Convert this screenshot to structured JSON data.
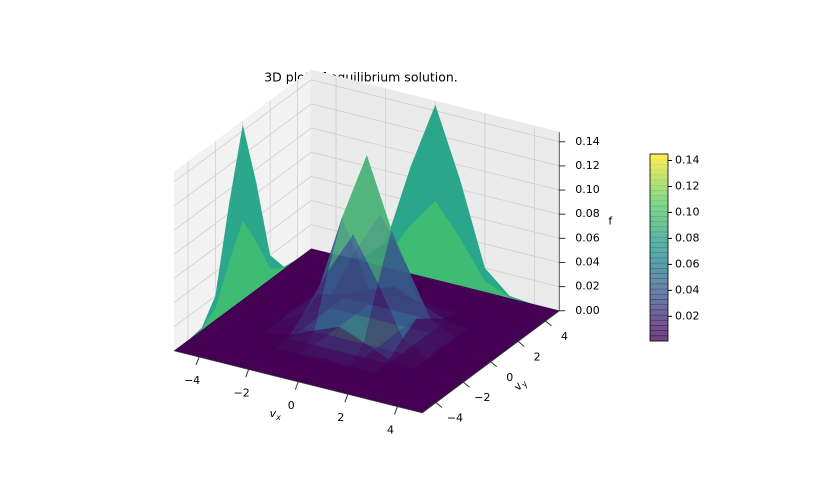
{
  "chart_data": {
    "type": "surface3d",
    "title": "3D plot of equilibrium solution.",
    "x_label": {
      "base": "v",
      "sub": "x"
    },
    "y_label": {
      "base": "v",
      "sub": "y"
    },
    "z_label": "f",
    "colormap": "viridis",
    "xlim": [
      -5,
      5
    ],
    "ylim": [
      -5,
      5
    ],
    "zlim": [
      0,
      0.148
    ],
    "xticks": [
      {
        "value": -4,
        "label": "−4"
      },
      {
        "value": -2,
        "label": "−2"
      },
      0,
      2,
      4
    ],
    "yticks": [
      {
        "value": -4,
        "label": "−4"
      },
      {
        "value": -2,
        "label": "−2"
      },
      0,
      2,
      4
    ],
    "zticks": [
      {
        "value": 0,
        "label": "0.00"
      },
      {
        "value": 0.02,
        "label": "0.02"
      },
      {
        "value": 0.04,
        "label": "0.04"
      },
      {
        "value": 0.06,
        "label": "0.06"
      },
      {
        "value": 0.08,
        "label": "0.08"
      },
      {
        "value": 0.1,
        "label": "0.10"
      },
      {
        "value": 0.12,
        "label": "0.12"
      },
      {
        "value": 0.14,
        "label": "0.14"
      }
    ],
    "clim": [
      0.001,
      0.145
    ],
    "colorbar_ticks": [
      {
        "value": 0.02,
        "label": "0.02"
      },
      {
        "value": 0.04,
        "label": "0.04"
      },
      {
        "value": 0.06,
        "label": "0.06"
      },
      {
        "value": 0.08,
        "label": "0.08"
      },
      {
        "value": 0.1,
        "label": "0.10"
      },
      {
        "value": 0.12,
        "label": "0.12"
      },
      {
        "value": 0.14,
        "label": "0.14"
      }
    ],
    "x": [
      -5,
      -4,
      -3,
      -2,
      -1,
      0,
      1,
      2,
      3,
      4,
      5
    ],
    "y": [
      -5,
      -4,
      -3,
      -2,
      -1,
      0,
      1,
      2,
      3,
      4,
      5
    ],
    "z": [
      [
        0,
        0,
        0,
        0,
        0,
        0,
        0,
        0,
        0,
        0,
        0
      ],
      [
        0,
        0,
        0,
        0,
        0,
        0,
        0,
        0,
        0,
        0,
        0
      ],
      [
        0,
        0,
        0,
        0,
        0.001,
        0.002,
        0.001,
        0,
        0,
        0,
        0
      ],
      [
        0,
        0,
        0,
        0.003,
        0.012,
        0.02,
        0.012,
        0.003,
        0,
        0,
        0
      ],
      [
        0,
        0,
        0.001,
        0.012,
        0.053,
        0.088,
        0.053,
        0.012,
        0.001,
        0,
        0
      ],
      [
        0,
        0,
        0.002,
        0.02,
        0.088,
        0.145,
        0.088,
        0.02,
        0.002,
        0,
        0
      ],
      [
        0,
        0,
        0.001,
        0.012,
        0.053,
        0.088,
        0.053,
        0.012,
        0.001,
        0,
        0
      ],
      [
        0,
        0,
        0,
        0.003,
        0.012,
        0.02,
        0.012,
        0.003,
        0,
        0,
        0
      ],
      [
        0,
        0,
        0,
        0,
        0.001,
        0.002,
        0.001,
        0,
        0,
        0,
        0
      ],
      [
        0,
        0,
        0,
        0,
        0,
        0,
        0,
        0,
        0,
        0,
        0
      ],
      [
        0,
        0,
        0,
        0,
        0,
        0,
        0,
        0,
        0,
        0,
        0
      ]
    ]
  }
}
